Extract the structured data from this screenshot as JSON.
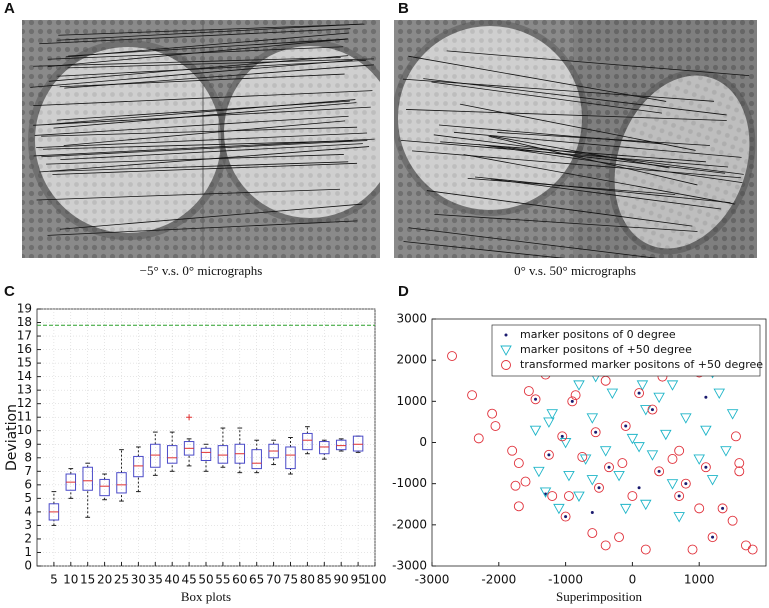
{
  "images": [
    {
      "label": "A",
      "caption": "−5° v.s. 0° micrographs"
    },
    {
      "label": "B",
      "caption": "0° v.s. 50° micrographs"
    }
  ],
  "chart_data": [
    {
      "type": "box",
      "panel_label": "C",
      "ylabel": "Deviation",
      "xlabel": "Box plots",
      "xlim": [
        0,
        100
      ],
      "xticks": [
        5,
        10,
        15,
        20,
        25,
        30,
        35,
        40,
        45,
        50,
        55,
        60,
        65,
        70,
        75,
        80,
        85,
        90,
        95,
        100
      ],
      "ylim": [
        0,
        19
      ],
      "yticks": [
        0,
        1,
        2,
        3,
        4,
        5,
        6,
        7,
        8,
        9,
        10,
        11,
        12,
        13,
        14,
        15,
        16,
        17,
        18,
        19
      ],
      "grid": true,
      "box_color": "#4a4ac8",
      "median_color": "#e03030",
      "x": [
        5,
        10,
        15,
        20,
        25,
        30,
        35,
        40,
        45,
        50,
        55,
        60,
        65,
        70,
        75,
        80,
        85,
        90,
        95
      ],
      "whisker_low": [
        3.0,
        5.0,
        3.6,
        4.9,
        4.8,
        5.5,
        6.7,
        7.0,
        7.4,
        7.0,
        7.3,
        6.9,
        6.9,
        7.5,
        6.8,
        8.3,
        7.9,
        8.5,
        8.4
      ],
      "q1": [
        3.4,
        5.6,
        5.6,
        5.2,
        5.4,
        6.6,
        7.3,
        7.6,
        8.2,
        7.8,
        7.6,
        7.6,
        7.2,
        8.0,
        7.2,
        8.6,
        8.3,
        8.6,
        8.5
      ],
      "median": [
        4.0,
        6.2,
        6.3,
        5.9,
        6.0,
        7.4,
        8.2,
        8.0,
        8.7,
        8.4,
        8.2,
        8.3,
        7.6,
        8.5,
        8.2,
        9.3,
        8.8,
        8.9,
        9.0
      ],
      "q3": [
        4.6,
        6.8,
        7.3,
        6.4,
        6.9,
        8.1,
        9.0,
        8.9,
        9.2,
        8.7,
        8.9,
        9.0,
        8.6,
        9.0,
        8.8,
        9.8,
        9.2,
        9.3,
        9.6
      ],
      "whisker_high": [
        5.5,
        7.2,
        7.6,
        6.8,
        8.6,
        8.8,
        9.9,
        9.9,
        9.4,
        9.0,
        10.2,
        10.2,
        9.3,
        9.3,
        9.5,
        10.3,
        9.3,
        9.4,
        9.6
      ],
      "outliers": [
        {
          "x": 45,
          "y": 11.0
        }
      ],
      "threshold": {
        "value": 17.8,
        "color": "#2ca02c"
      }
    },
    {
      "type": "scatter",
      "panel_label": "D",
      "xlabel": "Superimposition",
      "xlim": [
        -3000,
        2000
      ],
      "xticks": [
        -3000,
        -2000,
        -1000,
        0,
        1000
      ],
      "ylim": [
        -3000,
        3000
      ],
      "yticks": [
        -3000,
        -2000,
        -1000,
        0,
        1000,
        2000,
        3000
      ],
      "legend": "upper right",
      "series": [
        {
          "name": "marker positons of 0 degree",
          "color": "#1a1a6e",
          "marker": "dot",
          "x": [
            -1450,
            -1300,
            -1050,
            -1000,
            -900,
            -550,
            -350,
            -100,
            100,
            300,
            400,
            800,
            1100,
            1350,
            -1250,
            -500,
            700,
            1200,
            1100,
            1200,
            1100,
            -1300,
            -600,
            100
          ],
          "values": [
            1050,
            1650,
            150,
            -1800,
            1000,
            250,
            -600,
            400,
            1200,
            800,
            -700,
            -1000,
            -600,
            -1600,
            -300,
            -1100,
            -1300,
            -2300,
            1700,
            1700,
            1100,
            -1250,
            -1700,
            -1100
          ]
        },
        {
          "name": "marker positons of +50 degree",
          "color": "#1fb5c8",
          "marker": "triangle",
          "x": [
            -1450,
            -1400,
            -1300,
            -1250,
            -1200,
            -1100,
            -1000,
            -950,
            -800,
            -700,
            -600,
            -550,
            -400,
            -300,
            -200,
            -150,
            -100,
            0,
            100,
            150,
            200,
            300,
            400,
            500,
            600,
            700,
            800,
            900,
            1000,
            1100,
            1200,
            1300,
            1400,
            1500,
            -800,
            -600,
            200,
            1200,
            -1000,
            600
          ],
          "values": [
            300,
            -700,
            -1200,
            500,
            700,
            -1600,
            0,
            -800,
            1400,
            -400,
            600,
            1600,
            -200,
            1200,
            -800,
            1800,
            -1600,
            100,
            -100,
            1400,
            -1500,
            -300,
            1100,
            200,
            1400,
            -1800,
            600,
            1800,
            -400,
            300,
            -900,
            1200,
            -200,
            700,
            -1300,
            -900,
            800,
            1700,
            1800,
            -1000
          ]
        },
        {
          "name": "transformed marker positons of +50 degree",
          "color": "#e0303a",
          "marker": "circle",
          "x": [
            -2700,
            -2400,
            -2300,
            -2100,
            -2050,
            -1800,
            -1700,
            -1750,
            -1700,
            -1600,
            -1550,
            -1450,
            -1300,
            -1250,
            -1200,
            -1050,
            -1000,
            -950,
            -900,
            -850,
            -750,
            -600,
            -550,
            -500,
            -400,
            -350,
            -200,
            -150,
            -100,
            0,
            100,
            200,
            300,
            400,
            450,
            600,
            700,
            800,
            1000,
            1000,
            1100,
            1200,
            1350,
            1500,
            1550,
            1600,
            1700,
            1800,
            1600,
            -400,
            900,
            700
          ],
          "values": [
            2100,
            1150,
            100,
            700,
            400,
            -200,
            -500,
            -1050,
            -1550,
            -950,
            1250,
            1050,
            1650,
            -300,
            -1300,
            150,
            -1800,
            -1300,
            1000,
            1150,
            -350,
            -2200,
            250,
            -1100,
            1500,
            -600,
            -2300,
            -500,
            400,
            -1300,
            1200,
            -2600,
            800,
            -700,
            1600,
            -400,
            -1300,
            -1000,
            1700,
            -1600,
            -600,
            -2300,
            -1600,
            -1900,
            150,
            -500,
            -2500,
            -2600,
            -700,
            -2500,
            -2600,
            -200
          ]
        }
      ]
    }
  ]
}
